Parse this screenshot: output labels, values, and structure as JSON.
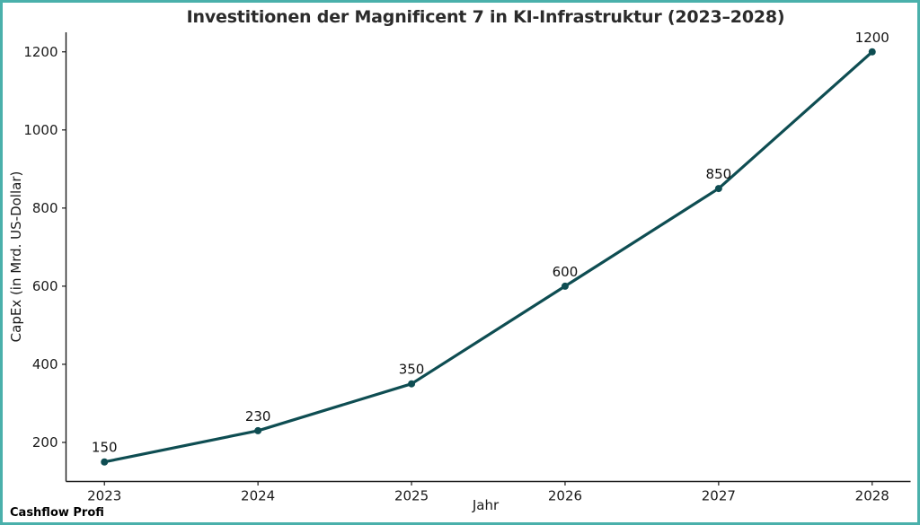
{
  "figure": {
    "watermark": "Cashflow Profi"
  },
  "chart_data": {
    "type": "line",
    "title": "Investitionen der Magnificent 7 in KI-Infrastruktur (2023–2028)",
    "xlabel": "Jahr",
    "ylabel": "CapEx (in Mrd. US-Dollar)",
    "x": [
      2023,
      2024,
      2025,
      2026,
      2027,
      2028
    ],
    "values": [
      150,
      230,
      350,
      600,
      850,
      1200
    ],
    "point_labels": [
      "150",
      "230",
      "350",
      "600",
      "850",
      "1200"
    ],
    "xtick_labels": [
      "2023",
      "2024",
      "2025",
      "2026",
      "2027",
      "2028"
    ],
    "yticks": [
      200,
      400,
      600,
      800,
      1000,
      1200
    ],
    "xlim": [
      2022.75,
      2028.25
    ],
    "ylim": [
      100,
      1250
    ],
    "grid": false,
    "legend": "none",
    "line_color": "#0e4d52",
    "marker": "circle"
  },
  "colors": {
    "frame_border": "#4ab0ab",
    "background": "#ffffff",
    "axis": "#1a1a1a",
    "tick_text": "#1a1a1a",
    "title_text": "#2b2b2b"
  }
}
